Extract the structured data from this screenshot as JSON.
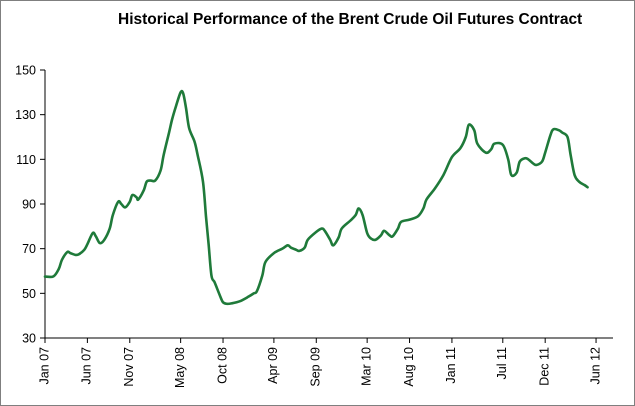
{
  "chart_data": {
    "type": "line",
    "title": "Historical Performance of the Brent Crude Oil Futures Contract",
    "xlabel": "",
    "ylabel": "",
    "ylim": [
      30,
      150
    ],
    "yticks": [
      30,
      50,
      70,
      90,
      110,
      130,
      150
    ],
    "xlim": [
      "2007-01",
      "2012-08"
    ],
    "xticks": [
      {
        "label": "Jan 07",
        "date": "2007-01"
      },
      {
        "label": "Jun 07",
        "date": "2007-06"
      },
      {
        "label": "Nov 07",
        "date": "2007-11"
      },
      {
        "label": "May 08",
        "date": "2008-05"
      },
      {
        "label": "Oct 08",
        "date": "2008-10"
      },
      {
        "label": "Apr 09",
        "date": "2009-04"
      },
      {
        "label": "Sep 09",
        "date": "2009-09"
      },
      {
        "label": "Mar 10",
        "date": "2010-03"
      },
      {
        "label": "Aug 10",
        "date": "2010-08"
      },
      {
        "label": "Jan 11",
        "date": "2011-01"
      },
      {
        "label": "Jul 11",
        "date": "2011-07"
      },
      {
        "label": "Dec 11",
        "date": "2011-12"
      },
      {
        "label": "Jun 12",
        "date": "2012-06"
      }
    ],
    "grid": false,
    "legend": "none",
    "line_color": "#1f7a3a",
    "series": [
      {
        "points": [
          [
            "2007-01",
            57.5
          ],
          [
            "2007-02",
            57.6
          ],
          [
            "2007-02-20",
            61
          ],
          [
            "2007-03",
            65
          ],
          [
            "2007-03-20",
            68.5
          ],
          [
            "2007-04",
            68
          ],
          [
            "2007-04-20",
            67.2
          ],
          [
            "2007-05",
            67.5
          ],
          [
            "2007-05-20",
            69.5
          ],
          [
            "2007-06",
            72
          ],
          [
            "2007-06-20",
            77
          ],
          [
            "2007-07",
            75.5
          ],
          [
            "2007-07-15",
            72.5
          ],
          [
            "2007-08",
            74
          ],
          [
            "2007-08-20",
            79
          ],
          [
            "2007-09",
            85
          ],
          [
            "2007-09-20",
            91
          ],
          [
            "2007-10",
            90
          ],
          [
            "2007-10-15",
            88.5
          ],
          [
            "2007-11",
            91
          ],
          [
            "2007-11-10",
            94
          ],
          [
            "2007-11-25",
            93
          ],
          [
            "2007-12",
            92
          ],
          [
            "2007-12-20",
            96
          ],
          [
            "2008-01",
            100
          ],
          [
            "2008-01-15",
            100.5
          ],
          [
            "2008-02",
            100.5
          ],
          [
            "2008-02-20",
            105
          ],
          [
            "2008-03",
            112
          ],
          [
            "2008-03-20",
            122
          ],
          [
            "2008-04",
            128
          ],
          [
            "2008-04-15",
            134
          ],
          [
            "2008-05",
            140
          ],
          [
            "2008-05-10",
            139.5
          ],
          [
            "2008-05-20",
            133
          ],
          [
            "2008-06",
            124
          ],
          [
            "2008-06-20",
            118
          ],
          [
            "2008-07",
            112
          ],
          [
            "2008-07-20",
            100
          ],
          [
            "2008-08",
            84
          ],
          [
            "2008-08-10",
            72
          ],
          [
            "2008-08-20",
            58
          ],
          [
            "2008-09",
            55
          ],
          [
            "2008-09-20",
            49
          ],
          [
            "2008-10",
            46
          ],
          [
            "2008-10-15",
            45.3
          ],
          [
            "2008-11",
            45.5
          ],
          [
            "2008-12",
            46.5
          ],
          [
            "2009-01",
            48.5
          ],
          [
            "2009-01-20",
            50
          ],
          [
            "2009-02",
            51
          ],
          [
            "2009-02-20",
            58
          ],
          [
            "2009-03",
            64
          ],
          [
            "2009-04",
            68
          ],
          [
            "2009-05",
            70
          ],
          [
            "2009-05-20",
            71.5
          ],
          [
            "2009-06",
            70.5
          ],
          [
            "2009-06-20",
            69.5
          ],
          [
            "2009-07",
            69
          ],
          [
            "2009-07-20",
            70.5
          ],
          [
            "2009-08",
            74
          ],
          [
            "2009-09",
            77.5
          ],
          [
            "2009-09-20",
            79
          ],
          [
            "2009-10",
            78
          ],
          [
            "2009-10-20",
            74
          ],
          [
            "2009-11",
            71.5
          ],
          [
            "2009-11-20",
            75
          ],
          [
            "2009-12",
            79
          ],
          [
            "2010-01",
            82.5
          ],
          [
            "2010-01-20",
            85
          ],
          [
            "2010-02",
            88
          ],
          [
            "2010-02-15",
            85
          ],
          [
            "2010-03",
            77
          ],
          [
            "2010-03-15",
            74.5
          ],
          [
            "2010-04",
            74
          ],
          [
            "2010-04-20",
            76
          ],
          [
            "2010-05",
            78
          ],
          [
            "2010-05-20",
            76
          ],
          [
            "2010-06",
            75.5
          ],
          [
            "2010-06-20",
            79
          ],
          [
            "2010-07",
            82
          ],
          [
            "2010-08",
            83
          ],
          [
            "2010-09",
            84.5
          ],
          [
            "2010-09-20",
            88
          ],
          [
            "2010-10",
            92
          ],
          [
            "2010-11",
            97
          ],
          [
            "2010-12",
            103
          ],
          [
            "2011-01",
            111
          ],
          [
            "2011-02",
            115
          ],
          [
            "2011-02-20",
            120
          ],
          [
            "2011-03",
            125.5
          ],
          [
            "2011-03-20",
            123
          ],
          [
            "2011-04",
            117
          ],
          [
            "2011-05",
            113
          ],
          [
            "2011-05-20",
            114.5
          ],
          [
            "2011-06",
            117
          ],
          [
            "2011-07",
            116.5
          ],
          [
            "2011-07-20",
            110
          ],
          [
            "2011-08",
            103
          ],
          [
            "2011-08-20",
            104
          ],
          [
            "2011-09",
            109
          ],
          [
            "2011-09-20",
            110.5
          ],
          [
            "2011-10",
            110
          ],
          [
            "2011-10-20",
            108
          ],
          [
            "2011-11",
            107.5
          ],
          [
            "2011-11-20",
            109
          ],
          [
            "2011-12",
            113
          ],
          [
            "2011-12-20",
            121
          ],
          [
            "2012-01",
            123.5
          ],
          [
            "2012-01-20",
            123
          ],
          [
            "2012-02",
            122
          ],
          [
            "2012-02-20",
            120
          ],
          [
            "2012-03",
            112
          ],
          [
            "2012-03-15",
            103
          ],
          [
            "2012-04",
            100
          ],
          [
            "2012-04-20",
            98.5
          ],
          [
            "2012-05",
            97.5
          ]
        ]
      }
    ]
  }
}
